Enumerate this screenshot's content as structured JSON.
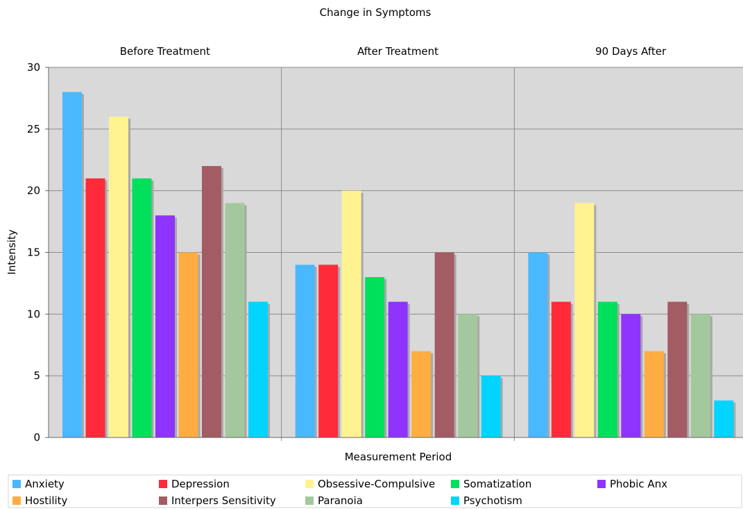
{
  "chart_data": {
    "type": "bar",
    "title": "Change in Symptoms",
    "xlabel": "Measurement Period",
    "ylabel": "Intensity",
    "categories": [
      "Before Treatment",
      "After Treatment",
      "90 Days After"
    ],
    "ylim": [
      0,
      30
    ],
    "yticks": [
      "0",
      "5",
      "10",
      "15",
      "20",
      "25",
      "30"
    ],
    "grid": true,
    "legend_position": "bottom",
    "colors": {
      "plot_background": "#d9d9d9",
      "grid": "#8a8a8a",
      "bar_shadow": "#a8a8a8"
    },
    "series": [
      {
        "name": "Anxiety",
        "color": "#4ab8ff",
        "values": [
          28,
          14,
          15
        ]
      },
      {
        "name": "Depression",
        "color": "#ff2a3a",
        "values": [
          21,
          14,
          11
        ]
      },
      {
        "name": "Obsessive-Compulsive",
        "color": "#fff291",
        "values": [
          26,
          20,
          19
        ]
      },
      {
        "name": "Somatization",
        "color": "#00e05a",
        "values": [
          21,
          13,
          11
        ]
      },
      {
        "name": "Phobic Anx",
        "color": "#8f33ff",
        "values": [
          18,
          11,
          10
        ]
      },
      {
        "name": "Hostility",
        "color": "#ffad42",
        "values": [
          15,
          7,
          7
        ]
      },
      {
        "name": "Interpers Sensitivity",
        "color": "#a35b64",
        "values": [
          22,
          15,
          11
        ]
      },
      {
        "name": "Paranoia",
        "color": "#a4c89d",
        "values": [
          19,
          10,
          10
        ]
      },
      {
        "name": "Psychotism",
        "color": "#00d4ff",
        "values": [
          11,
          5,
          3
        ]
      }
    ]
  }
}
